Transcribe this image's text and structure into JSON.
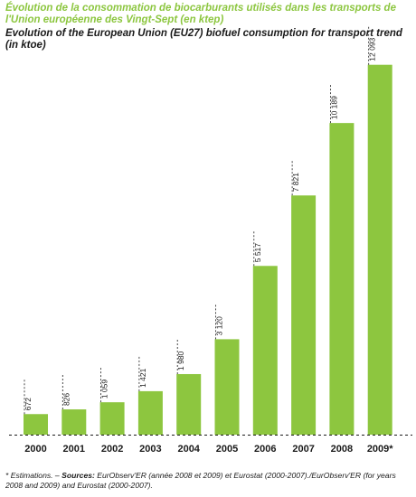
{
  "chart_data": {
    "type": "bar",
    "title_fr": "Évolution de la consommation de biocarburants utilisés dans les transports de l'Union européenne des Vingt-Sept (en ktep)",
    "title": "Evolution of the European Union (EU27) biofuel consumption for transport trend (in ktoe)",
    "categories": [
      "2000",
      "2001",
      "2002",
      "2003",
      "2004",
      "2005",
      "2006",
      "2007",
      "2008",
      "2009*"
    ],
    "values": [
      672,
      826,
      1059,
      1421,
      1980,
      3120,
      5517,
      7821,
      10189,
      12093
    ],
    "value_labels": [
      "672",
      "826",
      "1 059",
      "1 421",
      "1 980",
      "3 120",
      "5 517",
      "7 821",
      "10 189",
      "12 093"
    ],
    "ylim": [
      0,
      13000
    ],
    "grid": false,
    "legend": "none",
    "bar_color": "#8dc63f",
    "title_color": "#8cc63f"
  },
  "footnote": {
    "lead": "* Estimations. – ",
    "sources_label": "Sources:",
    "text": " EurObserv'ER (année 2008 et 2009) et Eurostat (2000-2007)./EurObserv'ER (for years 2008 and 2009) and Eurostat (2000-2007)."
  }
}
